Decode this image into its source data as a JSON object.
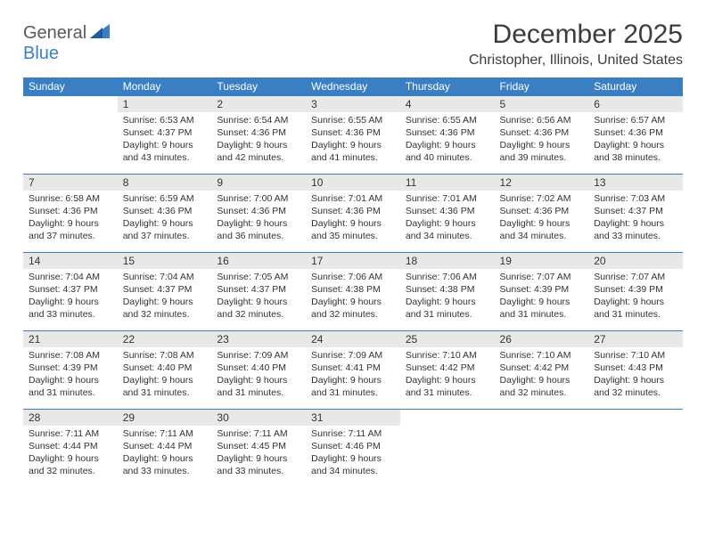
{
  "brand": {
    "part1": "General",
    "part2": "Blue"
  },
  "title": "December 2025",
  "location": "Christopher, Illinois, United States",
  "colors": {
    "header_bg": "#3a7fc4",
    "header_text": "#ffffff",
    "day_num_bg": "#e8e8e8",
    "row_sep": "#3a7fc4",
    "body_text": "#333333",
    "title_text": "#3c3c3c"
  },
  "typography": {
    "title_fontsize": 30,
    "location_fontsize": 16,
    "header_fontsize": 12,
    "daynum_fontsize": 12,
    "detail_fontsize": 10.5
  },
  "weekdays": [
    "Sunday",
    "Monday",
    "Tuesday",
    "Wednesday",
    "Thursday",
    "Friday",
    "Saturday"
  ],
  "weeks": [
    [
      null,
      {
        "n": "1",
        "sr": "Sunrise: 6:53 AM",
        "ss": "Sunset: 4:37 PM",
        "d1": "Daylight: 9 hours",
        "d2": "and 43 minutes."
      },
      {
        "n": "2",
        "sr": "Sunrise: 6:54 AM",
        "ss": "Sunset: 4:36 PM",
        "d1": "Daylight: 9 hours",
        "d2": "and 42 minutes."
      },
      {
        "n": "3",
        "sr": "Sunrise: 6:55 AM",
        "ss": "Sunset: 4:36 PM",
        "d1": "Daylight: 9 hours",
        "d2": "and 41 minutes."
      },
      {
        "n": "4",
        "sr": "Sunrise: 6:55 AM",
        "ss": "Sunset: 4:36 PM",
        "d1": "Daylight: 9 hours",
        "d2": "and 40 minutes."
      },
      {
        "n": "5",
        "sr": "Sunrise: 6:56 AM",
        "ss": "Sunset: 4:36 PM",
        "d1": "Daylight: 9 hours",
        "d2": "and 39 minutes."
      },
      {
        "n": "6",
        "sr": "Sunrise: 6:57 AM",
        "ss": "Sunset: 4:36 PM",
        "d1": "Daylight: 9 hours",
        "d2": "and 38 minutes."
      }
    ],
    [
      {
        "n": "7",
        "sr": "Sunrise: 6:58 AM",
        "ss": "Sunset: 4:36 PM",
        "d1": "Daylight: 9 hours",
        "d2": "and 37 minutes."
      },
      {
        "n": "8",
        "sr": "Sunrise: 6:59 AM",
        "ss": "Sunset: 4:36 PM",
        "d1": "Daylight: 9 hours",
        "d2": "and 37 minutes."
      },
      {
        "n": "9",
        "sr": "Sunrise: 7:00 AM",
        "ss": "Sunset: 4:36 PM",
        "d1": "Daylight: 9 hours",
        "d2": "and 36 minutes."
      },
      {
        "n": "10",
        "sr": "Sunrise: 7:01 AM",
        "ss": "Sunset: 4:36 PM",
        "d1": "Daylight: 9 hours",
        "d2": "and 35 minutes."
      },
      {
        "n": "11",
        "sr": "Sunrise: 7:01 AM",
        "ss": "Sunset: 4:36 PM",
        "d1": "Daylight: 9 hours",
        "d2": "and 34 minutes."
      },
      {
        "n": "12",
        "sr": "Sunrise: 7:02 AM",
        "ss": "Sunset: 4:36 PM",
        "d1": "Daylight: 9 hours",
        "d2": "and 34 minutes."
      },
      {
        "n": "13",
        "sr": "Sunrise: 7:03 AM",
        "ss": "Sunset: 4:37 PM",
        "d1": "Daylight: 9 hours",
        "d2": "and 33 minutes."
      }
    ],
    [
      {
        "n": "14",
        "sr": "Sunrise: 7:04 AM",
        "ss": "Sunset: 4:37 PM",
        "d1": "Daylight: 9 hours",
        "d2": "and 33 minutes."
      },
      {
        "n": "15",
        "sr": "Sunrise: 7:04 AM",
        "ss": "Sunset: 4:37 PM",
        "d1": "Daylight: 9 hours",
        "d2": "and 32 minutes."
      },
      {
        "n": "16",
        "sr": "Sunrise: 7:05 AM",
        "ss": "Sunset: 4:37 PM",
        "d1": "Daylight: 9 hours",
        "d2": "and 32 minutes."
      },
      {
        "n": "17",
        "sr": "Sunrise: 7:06 AM",
        "ss": "Sunset: 4:38 PM",
        "d1": "Daylight: 9 hours",
        "d2": "and 32 minutes."
      },
      {
        "n": "18",
        "sr": "Sunrise: 7:06 AM",
        "ss": "Sunset: 4:38 PM",
        "d1": "Daylight: 9 hours",
        "d2": "and 31 minutes."
      },
      {
        "n": "19",
        "sr": "Sunrise: 7:07 AM",
        "ss": "Sunset: 4:39 PM",
        "d1": "Daylight: 9 hours",
        "d2": "and 31 minutes."
      },
      {
        "n": "20",
        "sr": "Sunrise: 7:07 AM",
        "ss": "Sunset: 4:39 PM",
        "d1": "Daylight: 9 hours",
        "d2": "and 31 minutes."
      }
    ],
    [
      {
        "n": "21",
        "sr": "Sunrise: 7:08 AM",
        "ss": "Sunset: 4:39 PM",
        "d1": "Daylight: 9 hours",
        "d2": "and 31 minutes."
      },
      {
        "n": "22",
        "sr": "Sunrise: 7:08 AM",
        "ss": "Sunset: 4:40 PM",
        "d1": "Daylight: 9 hours",
        "d2": "and 31 minutes."
      },
      {
        "n": "23",
        "sr": "Sunrise: 7:09 AM",
        "ss": "Sunset: 4:40 PM",
        "d1": "Daylight: 9 hours",
        "d2": "and 31 minutes."
      },
      {
        "n": "24",
        "sr": "Sunrise: 7:09 AM",
        "ss": "Sunset: 4:41 PM",
        "d1": "Daylight: 9 hours",
        "d2": "and 31 minutes."
      },
      {
        "n": "25",
        "sr": "Sunrise: 7:10 AM",
        "ss": "Sunset: 4:42 PM",
        "d1": "Daylight: 9 hours",
        "d2": "and 31 minutes."
      },
      {
        "n": "26",
        "sr": "Sunrise: 7:10 AM",
        "ss": "Sunset: 4:42 PM",
        "d1": "Daylight: 9 hours",
        "d2": "and 32 minutes."
      },
      {
        "n": "27",
        "sr": "Sunrise: 7:10 AM",
        "ss": "Sunset: 4:43 PM",
        "d1": "Daylight: 9 hours",
        "d2": "and 32 minutes."
      }
    ],
    [
      {
        "n": "28",
        "sr": "Sunrise: 7:11 AM",
        "ss": "Sunset: 4:44 PM",
        "d1": "Daylight: 9 hours",
        "d2": "and 32 minutes."
      },
      {
        "n": "29",
        "sr": "Sunrise: 7:11 AM",
        "ss": "Sunset: 4:44 PM",
        "d1": "Daylight: 9 hours",
        "d2": "and 33 minutes."
      },
      {
        "n": "30",
        "sr": "Sunrise: 7:11 AM",
        "ss": "Sunset: 4:45 PM",
        "d1": "Daylight: 9 hours",
        "d2": "and 33 minutes."
      },
      {
        "n": "31",
        "sr": "Sunrise: 7:11 AM",
        "ss": "Sunset: 4:46 PM",
        "d1": "Daylight: 9 hours",
        "d2": "and 34 minutes."
      },
      null,
      null,
      null
    ]
  ]
}
